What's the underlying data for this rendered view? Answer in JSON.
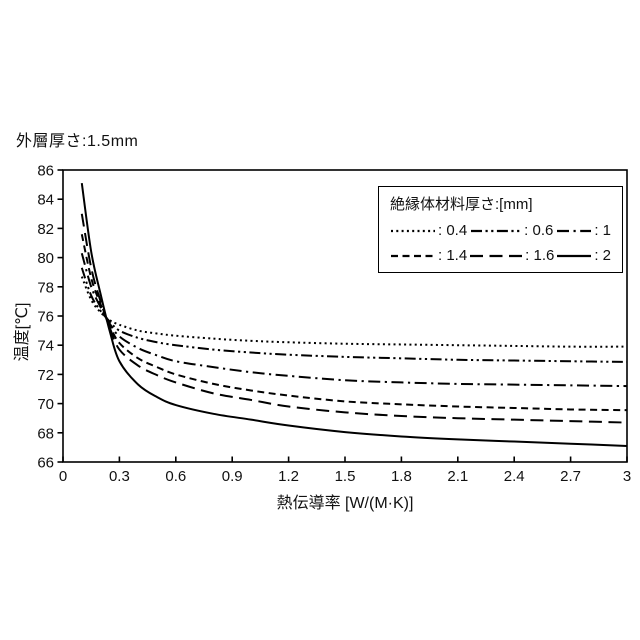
{
  "header": {
    "title": "外層厚さ:1.5mm"
  },
  "chart_data": {
    "type": "line",
    "title": "",
    "xlabel": "熱伝導率 [W/(M·K)]",
    "ylabel": "温度[℃]",
    "xlim": [
      0,
      3
    ],
    "ylim": [
      66,
      86
    ],
    "x_ticks": [
      0,
      0.3,
      0.6,
      0.9,
      1.2,
      1.5,
      1.8,
      2.1,
      2.4,
      2.7,
      3
    ],
    "y_ticks": [
      66,
      68,
      70,
      72,
      74,
      76,
      78,
      80,
      82,
      84,
      86
    ],
    "grid": false,
    "line_color": "#000000",
    "legend": {
      "title": "絶縁体材料厚さ:[mm]",
      "position": "top-right",
      "rows": [
        [
          0,
          1,
          2
        ],
        [
          3,
          4,
          5
        ]
      ]
    },
    "x": [
      0.1,
      0.15,
      0.2,
      0.25,
      0.3,
      0.4,
      0.5,
      0.6,
      0.8,
      1.0,
      1.2,
      1.5,
      1.8,
      2.1,
      2.4,
      2.7,
      3.0
    ],
    "series": [
      {
        "name": "0.4",
        "legend_label": ": 0.4",
        "dash": "2 3.3",
        "values": [
          78.7,
          77.1,
          76.25,
          75.7,
          75.4,
          75.0,
          74.8,
          74.65,
          74.45,
          74.3,
          74.2,
          74.1,
          74.05,
          74.0,
          73.95,
          73.9,
          73.9
        ]
      },
      {
        "name": "0.6",
        "legend_label": ": 0.6",
        "dash": "11 3.5 2.2 3.5 2.2 3.5",
        "values": [
          79.3,
          77.4,
          76.35,
          75.6,
          75.0,
          74.5,
          74.2,
          74.0,
          73.7,
          73.5,
          73.35,
          73.2,
          73.1,
          73.0,
          72.95,
          72.9,
          72.85
        ]
      },
      {
        "name": "1",
        "legend_label": ": 1",
        "dash": "12 4.5 2.2 4.5",
        "values": [
          80.3,
          78.0,
          76.6,
          75.45,
          74.6,
          73.8,
          73.3,
          72.9,
          72.5,
          72.15,
          71.9,
          71.6,
          71.45,
          71.35,
          71.3,
          71.25,
          71.2
        ]
      },
      {
        "name": "1.4",
        "legend_label": ": 1.4",
        "dash": "7 4.5",
        "values": [
          81.6,
          78.6,
          76.8,
          75.3,
          74.15,
          73.1,
          72.5,
          72.0,
          71.35,
          70.9,
          70.55,
          70.15,
          69.95,
          69.8,
          69.7,
          69.6,
          69.55
        ]
      },
      {
        "name": "1.6",
        "legend_label": ": 1.6",
        "dash": "13 6.5",
        "values": [
          83.0,
          79.3,
          77.0,
          75.15,
          73.7,
          72.6,
          71.95,
          71.45,
          70.7,
          70.25,
          69.8,
          69.4,
          69.15,
          69.0,
          68.9,
          68.8,
          68.7
        ]
      },
      {
        "name": "2",
        "legend_label": ": 2",
        "dash": "",
        "values": [
          85.1,
          80.4,
          77.5,
          74.9,
          72.9,
          71.3,
          70.45,
          69.9,
          69.3,
          68.9,
          68.5,
          68.05,
          67.75,
          67.55,
          67.4,
          67.25,
          67.1
        ]
      }
    ]
  }
}
